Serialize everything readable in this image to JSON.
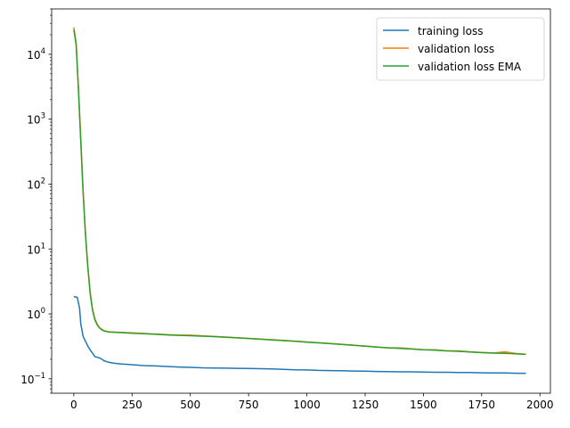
{
  "chart_data": {
    "type": "line",
    "title": "",
    "xlabel": "",
    "ylabel": "",
    "xscale": "linear",
    "yscale": "log",
    "xlim": [
      -95,
      2045
    ],
    "ylim": [
      0.06,
      50000
    ],
    "grid": false,
    "legend_position": "top-right",
    "x_ticks": [
      0,
      250,
      500,
      750,
      1000,
      1250,
      1500,
      1750,
      2000
    ],
    "x_tick_labels": [
      "0",
      "250",
      "500",
      "750",
      "1000",
      "1250",
      "1500",
      "1750",
      "2000"
    ],
    "y_ticks": [
      0.1,
      1,
      10,
      100,
      1000,
      10000
    ],
    "y_tick_labels": [
      {
        "base": "10",
        "exp": "−1"
      },
      {
        "base": "10",
        "exp": "0"
      },
      {
        "base": "10",
        "exp": "1"
      },
      {
        "base": "10",
        "exp": "2"
      },
      {
        "base": "10",
        "exp": "3"
      },
      {
        "base": "10",
        "exp": "4"
      }
    ],
    "series": [
      {
        "name": "training loss",
        "color": "#1f77b4",
        "x": [
          0,
          15,
          25,
          30,
          40,
          50,
          60,
          70,
          80,
          90,
          100,
          110,
          120,
          130,
          150,
          170,
          200,
          250,
          300,
          350,
          400,
          450,
          500,
          550,
          600,
          650,
          700,
          750,
          800,
          850,
          900,
          950,
          1000,
          1050,
          1100,
          1150,
          1200,
          1250,
          1300,
          1350,
          1400,
          1450,
          1500,
          1550,
          1600,
          1650,
          1700,
          1750,
          1800,
          1850,
          1900,
          1940
        ],
        "y": [
          1.85,
          1.8,
          1.2,
          0.7,
          0.45,
          0.38,
          0.32,
          0.28,
          0.25,
          0.22,
          0.215,
          0.21,
          0.2,
          0.19,
          0.18,
          0.175,
          0.17,
          0.165,
          0.16,
          0.158,
          0.155,
          0.152,
          0.15,
          0.148,
          0.147,
          0.146,
          0.145,
          0.144,
          0.143,
          0.142,
          0.14,
          0.138,
          0.137,
          0.135,
          0.134,
          0.133,
          0.132,
          0.131,
          0.13,
          0.129,
          0.128,
          0.128,
          0.127,
          0.126,
          0.126,
          0.125,
          0.125,
          0.124,
          0.123,
          0.123,
          0.122,
          0.122
        ]
      },
      {
        "name": "validation loss",
        "color": "#ff7f0e",
        "x": [
          0,
          10,
          20,
          30,
          40,
          50,
          60,
          70,
          80,
          90,
          100,
          110,
          120,
          130,
          150,
          200,
          250,
          300,
          350,
          400,
          450,
          500,
          550,
          600,
          650,
          700,
          750,
          800,
          850,
          900,
          950,
          1000,
          1050,
          1100,
          1150,
          1200,
          1250,
          1300,
          1350,
          1400,
          1450,
          1500,
          1550,
          1600,
          1650,
          1700,
          1750,
          1800,
          1850,
          1900,
          1940
        ],
        "y": [
          26000,
          15000,
          3000,
          500,
          80,
          18,
          5.5,
          2.2,
          1.2,
          0.85,
          0.7,
          0.62,
          0.58,
          0.55,
          0.53,
          0.52,
          0.51,
          0.5,
          0.49,
          0.48,
          0.47,
          0.47,
          0.46,
          0.45,
          0.44,
          0.43,
          0.42,
          0.41,
          0.4,
          0.39,
          0.38,
          0.37,
          0.36,
          0.35,
          0.34,
          0.33,
          0.32,
          0.31,
          0.3,
          0.3,
          0.29,
          0.28,
          0.28,
          0.27,
          0.27,
          0.26,
          0.255,
          0.25,
          0.26,
          0.245,
          0.24
        ]
      },
      {
        "name": "validation loss EMA",
        "color": "#2ca02c",
        "x": [
          0,
          10,
          20,
          30,
          40,
          50,
          60,
          70,
          80,
          90,
          100,
          110,
          120,
          130,
          150,
          200,
          250,
          300,
          350,
          400,
          450,
          500,
          550,
          600,
          650,
          700,
          750,
          800,
          850,
          900,
          950,
          1000,
          1050,
          1100,
          1150,
          1200,
          1250,
          1300,
          1350,
          1400,
          1450,
          1500,
          1550,
          1600,
          1650,
          1700,
          1750,
          1800,
          1850,
          1900,
          1940
        ],
        "y": [
          24000,
          14000,
          2800,
          450,
          75,
          17,
          5.2,
          2.1,
          1.15,
          0.82,
          0.68,
          0.61,
          0.57,
          0.545,
          0.525,
          0.515,
          0.505,
          0.495,
          0.485,
          0.475,
          0.468,
          0.462,
          0.455,
          0.447,
          0.438,
          0.428,
          0.418,
          0.408,
          0.398,
          0.388,
          0.378,
          0.368,
          0.358,
          0.348,
          0.338,
          0.328,
          0.318,
          0.308,
          0.3,
          0.295,
          0.288,
          0.281,
          0.276,
          0.27,
          0.265,
          0.259,
          0.253,
          0.249,
          0.247,
          0.242,
          0.238
        ]
      }
    ]
  }
}
